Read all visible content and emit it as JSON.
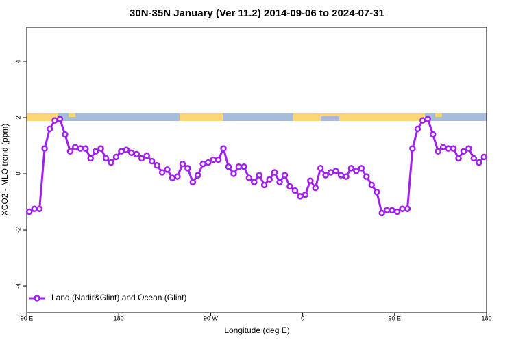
{
  "chart_data": {
    "type": "line",
    "title": "30N-35N January (Ver 11.2)   2014-09-06 to 2024-07-31",
    "x_label": "Longitude (deg E)",
    "y_label": "XCO2 - MLO trend (ppm)",
    "xlim": [
      90,
      540
    ],
    "xticks": [
      {
        "value": 90,
        "label": "90 E"
      },
      {
        "value": 180,
        "label": "180"
      },
      {
        "value": 270,
        "label": "90 W"
      },
      {
        "value": 360,
        "label": "0"
      },
      {
        "value": 450,
        "label": "90 E"
      },
      {
        "value": 540,
        "label": "180"
      }
    ],
    "ylim": [
      -4.95,
      5.22
    ],
    "yticks": [
      -4,
      -2,
      0,
      2,
      4
    ],
    "legend": "bottom-left",
    "x": [
      92.5,
      97.5,
      102.5,
      107.5,
      112.5,
      117.5,
      122.5,
      127.5,
      132.5,
      137.5,
      142.5,
      147.5,
      152.5,
      157.5,
      162.5,
      167.5,
      172.5,
      177.5,
      182.5,
      187.5,
      192.5,
      197.5,
      202.5,
      207.5,
      212.5,
      217.5,
      222.5,
      227.5,
      232.5,
      237.5,
      242.5,
      247.5,
      252.5,
      257.5,
      262.5,
      267.5,
      272.5,
      277.5,
      282.5,
      287.5,
      292.5,
      297.5,
      302.5,
      307.5,
      312.5,
      317.5,
      322.5,
      327.5,
      332.5,
      337.5,
      342.5,
      347.5,
      352.5,
      357.5,
      362.5,
      367.5,
      372.5,
      377.5,
      382.5,
      387.5,
      392.5,
      397.5,
      402.5,
      407.5,
      412.5,
      417.5,
      422.5,
      427.5,
      432.5,
      437.5,
      442.5,
      447.5,
      452.5,
      457.5,
      462.5,
      467.5,
      472.5,
      477.5,
      482.5,
      487.5,
      492.5,
      497.5,
      502.5,
      507.5,
      512.5,
      517.5,
      522.5,
      527.5,
      532.5,
      537.5
    ],
    "series": [
      {
        "name": "Land (Nadir&Glint) and Ocean (Glint)",
        "color": "#a020f0",
        "values": [
          -1.35,
          -1.25,
          -1.25,
          0.9,
          1.6,
          1.9,
          1.95,
          1.4,
          0.8,
          0.95,
          0.9,
          0.9,
          0.55,
          0.8,
          0.9,
          0.55,
          0.4,
          0.6,
          0.8,
          0.85,
          0.75,
          0.7,
          0.55,
          0.65,
          0.45,
          0.3,
          0.05,
          0.15,
          -0.15,
          -0.1,
          0.35,
          0.2,
          -0.3,
          -0.05,
          0.35,
          0.4,
          0.5,
          0.5,
          0.9,
          0.25,
          0.0,
          0.25,
          0.25,
          -0.15,
          -0.3,
          -0.05,
          -0.4,
          -0.2,
          0.05,
          -0.3,
          -0.05,
          -0.45,
          -0.6,
          -0.8,
          -0.75,
          -0.25,
          -0.5,
          0.2,
          -0.05,
          0.05,
          0.1,
          -0.05,
          -0.1,
          0.2,
          0.1,
          0.2,
          -0.1,
          -0.4,
          -0.65,
          -1.4,
          -1.3,
          -1.3,
          -1.35,
          -1.25,
          -1.25,
          0.9,
          1.6,
          1.9,
          1.95,
          1.4,
          0.8,
          0.95,
          0.9,
          0.9,
          0.55,
          0.8,
          0.9,
          0.55,
          0.4,
          0.6
        ]
      }
    ]
  }
}
